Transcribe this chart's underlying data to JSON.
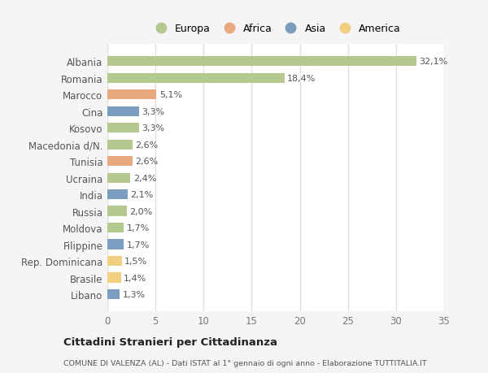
{
  "categories": [
    "Albania",
    "Romania",
    "Marocco",
    "Cina",
    "Kosovo",
    "Macedonia d/N.",
    "Tunisia",
    "Ucraina",
    "India",
    "Russia",
    "Moldova",
    "Filippine",
    "Rep. Dominicana",
    "Brasile",
    "Libano"
  ],
  "values": [
    32.1,
    18.4,
    5.1,
    3.3,
    3.3,
    2.6,
    2.6,
    2.4,
    2.1,
    2.0,
    1.7,
    1.7,
    1.5,
    1.4,
    1.3
  ],
  "labels": [
    "32,1%",
    "18,4%",
    "5,1%",
    "3,3%",
    "3,3%",
    "2,6%",
    "2,6%",
    "2,4%",
    "2,1%",
    "2,0%",
    "1,7%",
    "1,7%",
    "1,5%",
    "1,4%",
    "1,3%"
  ],
  "continents": [
    "Europa",
    "Europa",
    "Africa",
    "Asia",
    "Europa",
    "Europa",
    "Africa",
    "Europa",
    "Asia",
    "Europa",
    "Europa",
    "Asia",
    "America",
    "America",
    "Asia"
  ],
  "colors": {
    "Europa": "#b5c98e",
    "Africa": "#e8a97e",
    "Asia": "#7b9ec0",
    "America": "#f0d080"
  },
  "xlim": [
    0,
    35
  ],
  "xticks": [
    0,
    5,
    10,
    15,
    20,
    25,
    30,
    35
  ],
  "title": "Cittadini Stranieri per Cittadinanza",
  "subtitle": "COMUNE DI VALENZA (AL) - Dati ISTAT al 1° gennaio di ogni anno - Elaborazione TUTTITALIA.IT",
  "bg_color": "#f5f5f5",
  "plot_bg_color": "#ffffff",
  "grid_color": "#e0e0e0",
  "bar_height": 0.6,
  "legend_order": [
    "Europa",
    "Africa",
    "Asia",
    "America"
  ]
}
